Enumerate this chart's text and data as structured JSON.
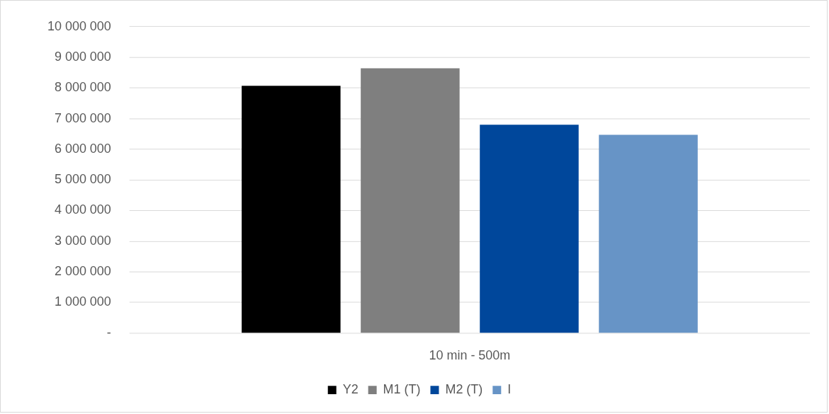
{
  "chart_data": {
    "type": "bar",
    "categories": [
      "10 min - 500m"
    ],
    "series": [
      {
        "name": "Y2",
        "color": "#000000",
        "values": [
          8070000
        ]
      },
      {
        "name": "M1 (T)",
        "color": "#7f7f7f",
        "values": [
          8640000
        ]
      },
      {
        "name": "M2 (T)",
        "color": "#00479b",
        "values": [
          6800000
        ]
      },
      {
        "name": "I",
        "color": "#6794c6",
        "values": [
          6470000
        ]
      }
    ],
    "ylim": [
      0,
      10000000
    ],
    "yticks": [
      {
        "value": 0,
        "label": "-"
      },
      {
        "value": 1000000,
        "label": "1 000 000"
      },
      {
        "value": 2000000,
        "label": "2 000 000"
      },
      {
        "value": 3000000,
        "label": "3 000 000"
      },
      {
        "value": 4000000,
        "label": "4 000 000"
      },
      {
        "value": 5000000,
        "label": "5 000 000"
      },
      {
        "value": 6000000,
        "label": "6 000 000"
      },
      {
        "value": 7000000,
        "label": "7 000 000"
      },
      {
        "value": 8000000,
        "label": "8 000 000"
      },
      {
        "value": 9000000,
        "label": "9 000 000"
      },
      {
        "value": 10000000,
        "label": "10 000 000"
      }
    ],
    "grid": "y",
    "legend": "bottom"
  }
}
